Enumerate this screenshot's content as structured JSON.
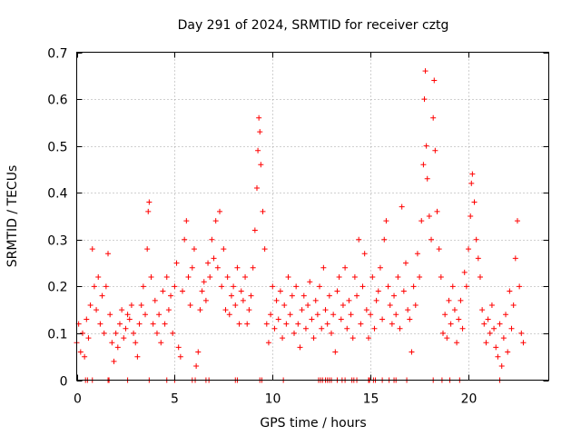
{
  "chart_data": {
    "type": "scatter",
    "title": "Day 291 of 2024, SRMTID for receiver cztg",
    "xlabel": "GPS time / hours",
    "ylabel": "SRMTID / TECUs",
    "xlim": [
      0,
      24.1
    ],
    "ylim": [
      0,
      0.7
    ],
    "xticks": [
      0,
      5,
      10,
      15,
      20
    ],
    "xtick_labels": [
      "0",
      "5",
      "10",
      "15",
      "20"
    ],
    "yticks": [
      0,
      0.1,
      0.2,
      0.3,
      0.4,
      0.5,
      0.6,
      0.7
    ],
    "ytick_labels": [
      "0",
      "0.1",
      "0.2",
      "0.3",
      "0.4",
      "0.5",
      "0.6",
      "0.7"
    ],
    "grid": true,
    "marker": "+",
    "marker_color": "#ff0000",
    "series": [
      {
        "name": "SRMTID",
        "points": [
          [
            0.0,
            0.08
          ],
          [
            0.1,
            0.12
          ],
          [
            0.2,
            0.06
          ],
          [
            0.3,
            0.1
          ],
          [
            0.4,
            0.05
          ],
          [
            0.5,
            0.13
          ],
          [
            0.6,
            0.09
          ],
          [
            0.7,
            0.16
          ],
          [
            0.8,
            0.28
          ],
          [
            0.9,
            0.2
          ],
          [
            1.0,
            0.15
          ],
          [
            1.1,
            0.22
          ],
          [
            1.2,
            0.12
          ],
          [
            1.3,
            0.18
          ],
          [
            1.4,
            0.1
          ],
          [
            1.5,
            0.2
          ],
          [
            1.6,
            0.27
          ],
          [
            1.7,
            0.14
          ],
          [
            1.8,
            0.08
          ],
          [
            1.9,
            0.04
          ],
          [
            2.0,
            0.1
          ],
          [
            2.1,
            0.07
          ],
          [
            2.2,
            0.12
          ],
          [
            2.3,
            0.15
          ],
          [
            2.4,
            0.09
          ],
          [
            2.5,
            0.11
          ],
          [
            2.6,
            0.14
          ],
          [
            2.7,
            0.13
          ],
          [
            2.8,
            0.16
          ],
          [
            2.9,
            0.1
          ],
          [
            3.0,
            0.08
          ],
          [
            3.1,
            0.05
          ],
          [
            3.2,
            0.12
          ],
          [
            3.3,
            0.16
          ],
          [
            3.4,
            0.2
          ],
          [
            3.5,
            0.14
          ],
          [
            3.6,
            0.28
          ],
          [
            3.65,
            0.36
          ],
          [
            3.7,
            0.38
          ],
          [
            3.8,
            0.22
          ],
          [
            3.9,
            0.12
          ],
          [
            4.0,
            0.17
          ],
          [
            4.1,
            0.1
          ],
          [
            4.2,
            0.14
          ],
          [
            4.3,
            0.08
          ],
          [
            4.4,
            0.19
          ],
          [
            4.5,
            0.12
          ],
          [
            4.6,
            0.22
          ],
          [
            4.7,
            0.15
          ],
          [
            4.8,
            0.18
          ],
          [
            4.9,
            0.1
          ],
          [
            5.0,
            0.2
          ],
          [
            5.1,
            0.25
          ],
          [
            5.2,
            0.07
          ],
          [
            5.3,
            0.05
          ],
          [
            5.4,
            0.19
          ],
          [
            5.5,
            0.3
          ],
          [
            5.6,
            0.34
          ],
          [
            5.7,
            0.22
          ],
          [
            5.8,
            0.16
          ],
          [
            5.9,
            0.24
          ],
          [
            6.0,
            0.28
          ],
          [
            6.1,
            0.03
          ],
          [
            6.2,
            0.06
          ],
          [
            6.3,
            0.15
          ],
          [
            6.4,
            0.19
          ],
          [
            6.5,
            0.21
          ],
          [
            6.6,
            0.17
          ],
          [
            6.7,
            0.25
          ],
          [
            6.8,
            0.22
          ],
          [
            6.9,
            0.3
          ],
          [
            7.0,
            0.26
          ],
          [
            7.1,
            0.34
          ],
          [
            7.2,
            0.24
          ],
          [
            7.3,
            0.36
          ],
          [
            7.4,
            0.2
          ],
          [
            7.5,
            0.28
          ],
          [
            7.6,
            0.15
          ],
          [
            7.7,
            0.22
          ],
          [
            7.8,
            0.14
          ],
          [
            7.9,
            0.18
          ],
          [
            8.0,
            0.2
          ],
          [
            8.1,
            0.16
          ],
          [
            8.2,
            0.24
          ],
          [
            8.3,
            0.12
          ],
          [
            8.4,
            0.19
          ],
          [
            8.5,
            0.17
          ],
          [
            8.6,
            0.22
          ],
          [
            8.7,
            0.12
          ],
          [
            8.8,
            0.15
          ],
          [
            8.9,
            0.18
          ],
          [
            9.0,
            0.24
          ],
          [
            9.1,
            0.32
          ],
          [
            9.2,
            0.41
          ],
          [
            9.25,
            0.49
          ],
          [
            9.3,
            0.56
          ],
          [
            9.35,
            0.53
          ],
          [
            9.4,
            0.46
          ],
          [
            9.5,
            0.36
          ],
          [
            9.6,
            0.28
          ],
          [
            9.7,
            0.12
          ],
          [
            9.8,
            0.08
          ],
          [
            9.9,
            0.14
          ],
          [
            10.0,
            0.2
          ],
          [
            10.1,
            0.11
          ],
          [
            10.2,
            0.17
          ],
          [
            10.3,
            0.13
          ],
          [
            10.4,
            0.19
          ],
          [
            10.5,
            0.09
          ],
          [
            10.6,
            0.16
          ],
          [
            10.7,
            0.12
          ],
          [
            10.8,
            0.22
          ],
          [
            10.9,
            0.14
          ],
          [
            11.0,
            0.18
          ],
          [
            11.1,
            0.1
          ],
          [
            11.2,
            0.2
          ],
          [
            11.3,
            0.12
          ],
          [
            11.4,
            0.07
          ],
          [
            11.5,
            0.15
          ],
          [
            11.6,
            0.18
          ],
          [
            11.7,
            0.11
          ],
          [
            11.8,
            0.16
          ],
          [
            11.9,
            0.21
          ],
          [
            12.0,
            0.13
          ],
          [
            12.1,
            0.09
          ],
          [
            12.2,
            0.17
          ],
          [
            12.3,
            0.14
          ],
          [
            12.4,
            0.2
          ],
          [
            12.5,
            0.11
          ],
          [
            12.6,
            0.24
          ],
          [
            12.7,
            0.15
          ],
          [
            12.8,
            0.12
          ],
          [
            12.9,
            0.18
          ],
          [
            13.0,
            0.1
          ],
          [
            13.1,
            0.14
          ],
          [
            13.2,
            0.06
          ],
          [
            13.3,
            0.19
          ],
          [
            13.4,
            0.22
          ],
          [
            13.5,
            0.13
          ],
          [
            13.6,
            0.16
          ],
          [
            13.7,
            0.24
          ],
          [
            13.8,
            0.11
          ],
          [
            13.9,
            0.17
          ],
          [
            14.0,
            0.14
          ],
          [
            14.1,
            0.09
          ],
          [
            14.2,
            0.22
          ],
          [
            14.3,
            0.18
          ],
          [
            14.4,
            0.3
          ],
          [
            14.5,
            0.12
          ],
          [
            14.6,
            0.2
          ],
          [
            14.7,
            0.27
          ],
          [
            14.8,
            0.15
          ],
          [
            14.9,
            0.09
          ],
          [
            15.0,
            0.14
          ],
          [
            15.1,
            0.22
          ],
          [
            15.2,
            0.11
          ],
          [
            15.3,
            0.17
          ],
          [
            15.4,
            0.19
          ],
          [
            15.5,
            0.24
          ],
          [
            15.6,
            0.13
          ],
          [
            15.7,
            0.3
          ],
          [
            15.8,
            0.34
          ],
          [
            15.9,
            0.2
          ],
          [
            16.0,
            0.16
          ],
          [
            16.1,
            0.12
          ],
          [
            16.2,
            0.18
          ],
          [
            16.3,
            0.14
          ],
          [
            16.4,
            0.22
          ],
          [
            16.5,
            0.11
          ],
          [
            16.6,
            0.37
          ],
          [
            16.7,
            0.19
          ],
          [
            16.8,
            0.25
          ],
          [
            16.9,
            0.15
          ],
          [
            17.0,
            0.13
          ],
          [
            17.1,
            0.06
          ],
          [
            17.2,
            0.2
          ],
          [
            17.3,
            0.16
          ],
          [
            17.4,
            0.27
          ],
          [
            17.5,
            0.22
          ],
          [
            17.6,
            0.34
          ],
          [
            17.7,
            0.46
          ],
          [
            17.75,
            0.6
          ],
          [
            17.8,
            0.66
          ],
          [
            17.85,
            0.5
          ],
          [
            17.9,
            0.43
          ],
          [
            18.0,
            0.35
          ],
          [
            18.1,
            0.3
          ],
          [
            18.2,
            0.56
          ],
          [
            18.25,
            0.64
          ],
          [
            18.3,
            0.49
          ],
          [
            18.4,
            0.36
          ],
          [
            18.5,
            0.28
          ],
          [
            18.6,
            0.22
          ],
          [
            18.7,
            0.1
          ],
          [
            18.8,
            0.14
          ],
          [
            18.9,
            0.09
          ],
          [
            19.0,
            0.17
          ],
          [
            19.1,
            0.12
          ],
          [
            19.2,
            0.2
          ],
          [
            19.3,
            0.15
          ],
          [
            19.4,
            0.08
          ],
          [
            19.5,
            0.13
          ],
          [
            19.6,
            0.17
          ],
          [
            19.7,
            0.11
          ],
          [
            19.8,
            0.23
          ],
          [
            19.9,
            0.2
          ],
          [
            20.0,
            0.28
          ],
          [
            20.1,
            0.35
          ],
          [
            20.15,
            0.42
          ],
          [
            20.2,
            0.44
          ],
          [
            20.3,
            0.38
          ],
          [
            20.4,
            0.3
          ],
          [
            20.5,
            0.26
          ],
          [
            20.6,
            0.22
          ],
          [
            20.7,
            0.15
          ],
          [
            20.8,
            0.12
          ],
          [
            20.9,
            0.08
          ],
          [
            21.0,
            0.13
          ],
          [
            21.1,
            0.1
          ],
          [
            21.2,
            0.16
          ],
          [
            21.3,
            0.11
          ],
          [
            21.4,
            0.07
          ],
          [
            21.5,
            0.05
          ],
          [
            21.6,
            0.12
          ],
          [
            21.7,
            0.03
          ],
          [
            21.8,
            0.09
          ],
          [
            21.9,
            0.14
          ],
          [
            22.0,
            0.06
          ],
          [
            22.1,
            0.19
          ],
          [
            22.2,
            0.11
          ],
          [
            22.3,
            0.16
          ],
          [
            22.4,
            0.26
          ],
          [
            22.5,
            0.34
          ],
          [
            22.6,
            0.2
          ],
          [
            22.7,
            0.1
          ],
          [
            22.8,
            0.08
          ]
        ]
      }
    ],
    "zero_points_x": [
      0.45,
      0.55,
      0.8,
      1.6,
      1.65,
      2.6,
      3.7,
      4.6,
      5.0,
      5.9,
      6.05,
      6.6,
      6.75,
      8.1,
      8.2,
      9.35,
      9.45,
      10.55,
      12.35,
      12.45,
      12.55,
      12.7,
      12.8,
      12.9,
      13.0,
      13.3,
      13.55,
      13.7,
      14.05,
      14.15,
      14.3,
      14.9,
      14.95,
      15.15,
      15.25,
      15.6,
      15.95,
      16.2,
      16.3,
      16.85,
      18.2,
      18.65,
      19.05,
      19.55,
      21.6
    ]
  }
}
